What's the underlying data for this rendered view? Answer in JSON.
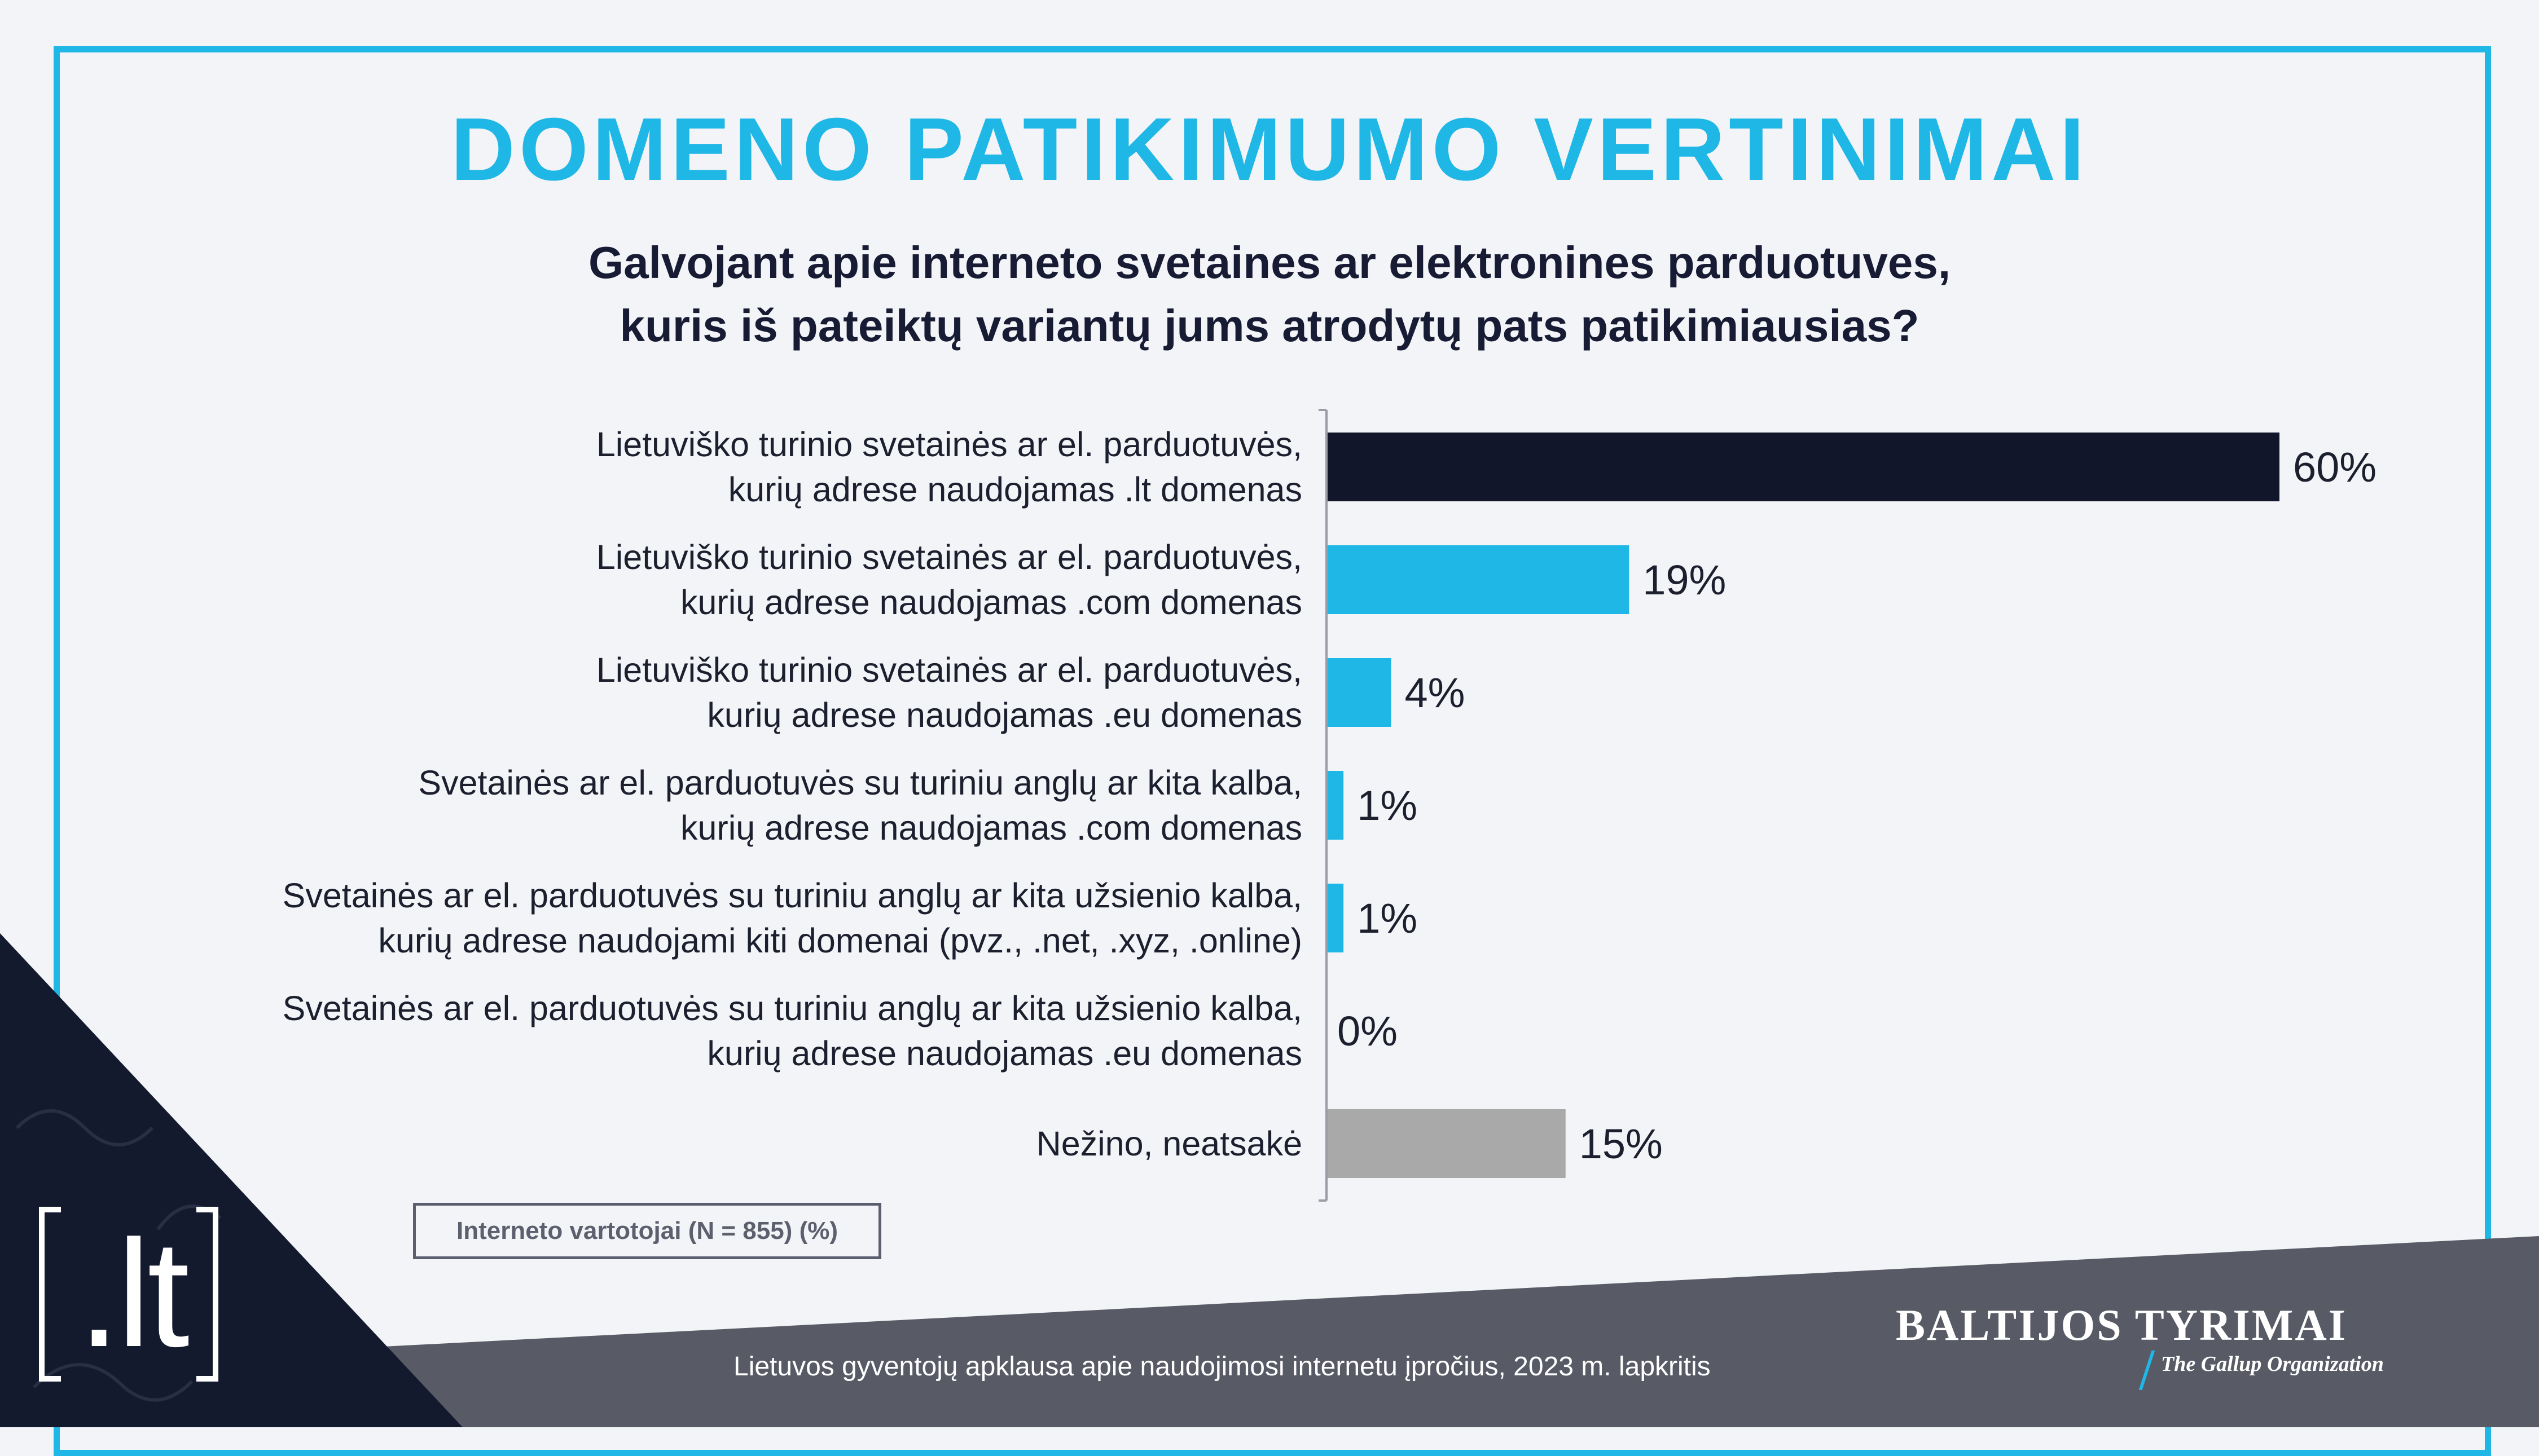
{
  "header": {
    "title": "DOMENO PATIKIMUMO VERTINIMAI",
    "question_lines": [
      "Galvojant apie interneto svetaines ar elektronines parduotuves,",
      "kuris iš pateiktų variantų jums atrodytų pats patikimiausias?"
    ]
  },
  "chart_data": {
    "type": "bar",
    "orientation": "horizontal",
    "unit": "%",
    "xlim": [
      0,
      60
    ],
    "grid": false,
    "categories": [
      [
        "Lietuviško turinio svetainės ar el. parduotuvės,",
        "kurių adrese naudojamas .lt domenas"
      ],
      [
        "Lietuviško turinio svetainės ar el. parduotuvės,",
        "kurių adrese naudojamas .com domenas"
      ],
      [
        "Lietuviško turinio svetainės ar el. parduotuvės,",
        "kurių adrese naudojamas .eu domenas"
      ],
      [
        "Svetainės ar el. parduotuvės su turiniu anglų ar kita kalba,",
        "kurių adrese naudojamas .com domenas"
      ],
      [
        "Svetainės ar el. parduotuvės su turiniu anglų ar kita užsienio kalba,",
        "kurių adrese naudojami kiti domenai (pvz., .net, .xyz, .online)"
      ],
      [
        "Svetainės ar el. parduotuvės su turiniu anglų ar kita užsienio kalba,",
        "kurių adrese naudojamas .eu domenas"
      ],
      [
        "Nežino, neatsakė"
      ]
    ],
    "values": [
      60,
      19,
      4,
      1,
      1,
      0,
      15
    ],
    "value_labels": [
      "60%",
      "19%",
      "4%",
      "1%",
      "1%",
      "0%",
      "15%"
    ],
    "bar_colors": [
      "#12162b",
      "#1fb7e5",
      "#1fb7e5",
      "#1fb7e5",
      "#1fb7e5",
      "#1fb7e5",
      "#a9a9a9"
    ]
  },
  "base_note": "Interneto vartotojai (N = 855) (%)",
  "footer": {
    "survey_text": "Lietuvos gyventojų apklausa apie naudojimosi internetu įpročius, 2023 m. lapkritis",
    "brand_name": "BALTIJOS TYRIMAI",
    "brand_tagline": "The Gallup Organization",
    "logo_text": ".lt"
  },
  "colors": {
    "accent": "#1fb7e5",
    "dark": "#12162b",
    "grey_band": "#585a66"
  }
}
